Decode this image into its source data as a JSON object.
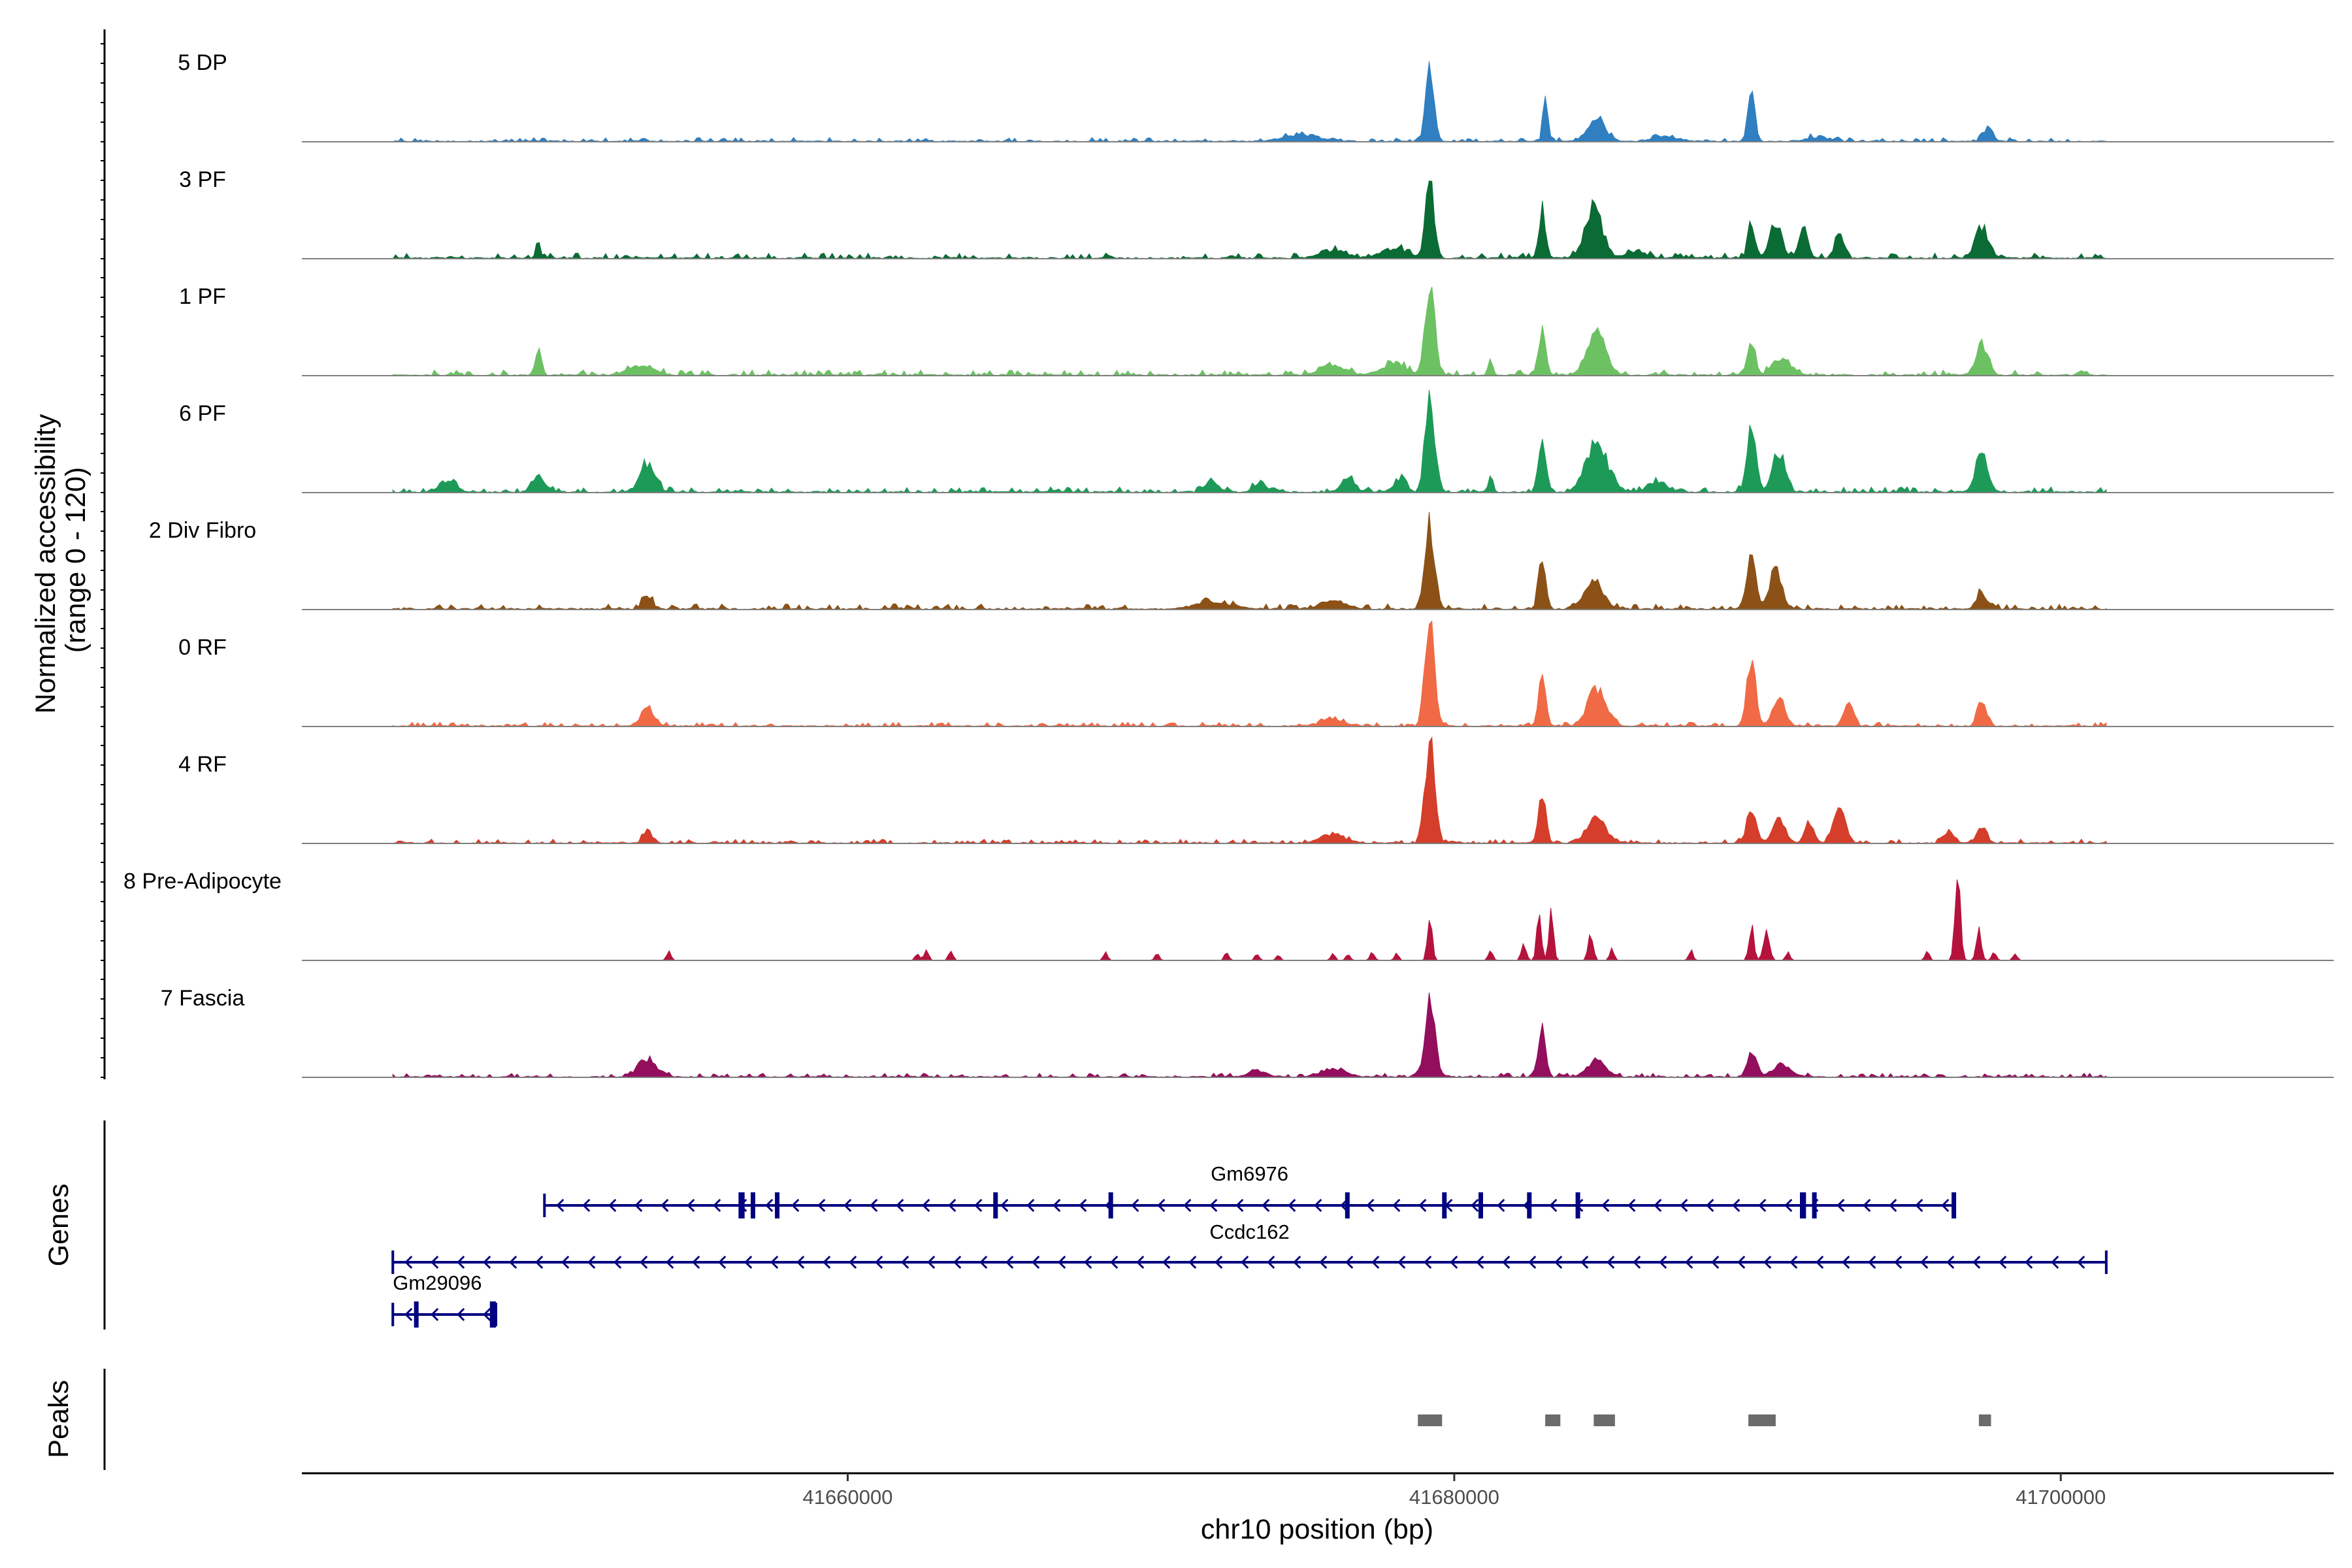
{
  "chart_data": {
    "type": "area",
    "title": "",
    "ylabel_line1": "Normalized accessibility",
    "ylabel_line2": "(range 0 - 120)",
    "ylim": [
      0,
      120
    ],
    "xlabel": "chr10 position (bp)",
    "xlim": [
      41642000,
      41709000
    ],
    "x_ticks": [
      41660000,
      41680000,
      41700000
    ],
    "x_tick_labels": [
      "41660000",
      "41680000",
      "41700000"
    ],
    "track_range": [
      41645000,
      41701500
    ],
    "panel_labels": {
      "genes": "Genes",
      "peaks": "Peaks"
    },
    "tracks": [
      {
        "name": "5 DP",
        "color": "#2f7fc1",
        "baseline": 3,
        "ncells_sparse": false,
        "peaks": [
          [
            41679200,
            90,
            140
          ],
          [
            41683000,
            60,
            70
          ],
          [
            41684700,
            25,
            300
          ],
          [
            41689800,
            65,
            110
          ],
          [
            41697600,
            18,
            150
          ],
          [
            41675000,
            8,
            600
          ],
          [
            41687000,
            6,
            400
          ],
          [
            41692000,
            5,
            400
          ]
        ]
      },
      {
        "name": "3 PF",
        "color": "#0b6b34",
        "baseline": 4,
        "ncells_sparse": false,
        "peaks": [
          [
            41649800,
            20,
            60
          ],
          [
            41679200,
            95,
            140
          ],
          [
            41682900,
            60,
            110
          ],
          [
            41684600,
            55,
            300
          ],
          [
            41689800,
            45,
            110
          ],
          [
            41690600,
            38,
            200
          ],
          [
            41691500,
            35,
            150
          ],
          [
            41692700,
            30,
            150
          ],
          [
            41697400,
            38,
            200
          ],
          [
            41676000,
            10,
            400
          ],
          [
            41678000,
            12,
            400
          ],
          [
            41686000,
            8,
            300
          ]
        ]
      },
      {
        "name": "1 PF",
        "color": "#6cc163",
        "baseline": 4,
        "ncells_sparse": false,
        "peaks": [
          [
            41649800,
            30,
            100
          ],
          [
            41653200,
            12,
            400
          ],
          [
            41679200,
            115,
            150
          ],
          [
            41681200,
            18,
            80
          ],
          [
            41682900,
            60,
            110
          ],
          [
            41684700,
            50,
            300
          ],
          [
            41689800,
            45,
            120
          ],
          [
            41690800,
            20,
            300
          ],
          [
            41697400,
            36,
            200
          ],
          [
            41676000,
            12,
            400
          ],
          [
            41678000,
            14,
            400
          ]
        ]
      },
      {
        "name": "6 PF",
        "color": "#1d9a57",
        "baseline": 4,
        "ncells_sparse": false,
        "peaks": [
          [
            41646800,
            12,
            300
          ],
          [
            41649800,
            20,
            200
          ],
          [
            41653400,
            32,
            250
          ],
          [
            41672000,
            14,
            200
          ],
          [
            41679200,
            115,
            160
          ],
          [
            41681200,
            18,
            80
          ],
          [
            41682900,
            65,
            120
          ],
          [
            41684700,
            60,
            350
          ],
          [
            41689800,
            75,
            150
          ],
          [
            41690700,
            50,
            200
          ],
          [
            41697400,
            50,
            200
          ],
          [
            41673600,
            12,
            200
          ],
          [
            41676500,
            18,
            200
          ],
          [
            41678200,
            16,
            200
          ],
          [
            41686700,
            12,
            300
          ]
        ]
      },
      {
        "name": "2 Div Fibro",
        "color": "#8b5116",
        "baseline": 4,
        "ncells_sparse": false,
        "peaks": [
          [
            41653400,
            16,
            150
          ],
          [
            41679200,
            100,
            160
          ],
          [
            41682900,
            65,
            120
          ],
          [
            41684600,
            35,
            300
          ],
          [
            41689800,
            70,
            150
          ],
          [
            41690600,
            50,
            200
          ],
          [
            41697400,
            20,
            150
          ],
          [
            41676000,
            10,
            400
          ],
          [
            41672000,
            8,
            600
          ]
        ]
      },
      {
        "name": "0 RF",
        "color": "#f06a45",
        "baseline": 3,
        "ncells_sparse": false,
        "peaks": [
          [
            41653400,
            24,
            200
          ],
          [
            41679200,
            125,
            160
          ],
          [
            41682900,
            60,
            120
          ],
          [
            41684700,
            45,
            300
          ],
          [
            41689800,
            75,
            150
          ],
          [
            41690700,
            35,
            200
          ],
          [
            41693000,
            30,
            150
          ],
          [
            41697400,
            30,
            150
          ],
          [
            41676000,
            8,
            400
          ]
        ]
      },
      {
        "name": "4 RF",
        "color": "#d43e2a",
        "baseline": 3,
        "ncells_sparse": false,
        "peaks": [
          [
            41653400,
            14,
            150
          ],
          [
            41679200,
            125,
            160
          ],
          [
            41682900,
            60,
            120
          ],
          [
            41684700,
            30,
            300
          ],
          [
            41689800,
            45,
            150
          ],
          [
            41690700,
            30,
            200
          ],
          [
            41691700,
            25,
            150
          ],
          [
            41692700,
            40,
            200
          ],
          [
            41697400,
            20,
            150
          ],
          [
            41696300,
            15,
            150
          ],
          [
            41676000,
            10,
            400
          ]
        ]
      },
      {
        "name": "8 Pre-Adipocyte",
        "color": "#b5123c",
        "baseline": 0,
        "ncells_sparse": true,
        "peaks": [
          [
            41654100,
            12,
            40
          ],
          [
            41662300,
            8,
            40
          ],
          [
            41662600,
            12,
            40
          ],
          [
            41663400,
            12,
            40
          ],
          [
            41668500,
            10,
            40
          ],
          [
            41670200,
            8,
            40
          ],
          [
            41672500,
            10,
            40
          ],
          [
            41673500,
            8,
            40
          ],
          [
            41674200,
            6,
            60
          ],
          [
            41676000,
            8,
            40
          ],
          [
            41676500,
            8,
            40
          ],
          [
            41677300,
            10,
            40
          ],
          [
            41678100,
            8,
            40
          ],
          [
            41679200,
            60,
            70
          ],
          [
            41681200,
            12,
            40
          ],
          [
            41682300,
            20,
            80
          ],
          [
            41682800,
            58,
            50
          ],
          [
            41683200,
            60,
            40
          ],
          [
            41684500,
            35,
            80
          ],
          [
            41685200,
            15,
            60
          ],
          [
            41687800,
            12,
            60
          ],
          [
            41689800,
            40,
            80
          ],
          [
            41690300,
            35,
            100
          ],
          [
            41691000,
            10,
            60
          ],
          [
            41695600,
            12,
            40
          ],
          [
            41696600,
            100,
            90
          ],
          [
            41697300,
            40,
            80
          ],
          [
            41697800,
            10,
            60
          ],
          [
            41698500,
            8,
            40
          ]
        ]
      },
      {
        "name": "7 Fascia",
        "color": "#930e5d",
        "baseline": 3,
        "ncells_sparse": false,
        "peaks": [
          [
            41653400,
            20,
            300
          ],
          [
            41679200,
            95,
            160
          ],
          [
            41682900,
            55,
            120
          ],
          [
            41684700,
            20,
            300
          ],
          [
            41689800,
            30,
            150
          ],
          [
            41690800,
            15,
            300
          ],
          [
            41676000,
            10,
            400
          ],
          [
            41673500,
            8,
            300
          ]
        ]
      }
    ],
    "genes": [
      {
        "name": "Gm6976",
        "color": "#000080",
        "start": 41650000,
        "end": 41696500,
        "strand": "-",
        "exons": [
          [
            41656400,
            41656600
          ],
          [
            41656800,
            41656900
          ],
          [
            41657600,
            41657650
          ],
          [
            41664800,
            41664950
          ],
          [
            41668600,
            41668650
          ],
          [
            41676400,
            41676550
          ],
          [
            41679600,
            41679750
          ],
          [
            41680800,
            41680950
          ],
          [
            41682400,
            41682550
          ],
          [
            41684000,
            41684100
          ],
          [
            41691400,
            41691600
          ],
          [
            41691800,
            41691900
          ],
          [
            41696400,
            41696500
          ]
        ]
      },
      {
        "name": "Ccdc162",
        "color": "#000080",
        "start": 41645000,
        "end": 41701500,
        "strand": "-",
        "exons": []
      },
      {
        "name": "Gm29096",
        "color": "#000080",
        "start": 41645000,
        "end": 41648400,
        "strand": "-",
        "exons": [
          [
            41645700,
            41645800
          ],
          [
            41648200,
            41648400
          ]
        ]
      }
    ],
    "peak_regions": [
      [
        41678800,
        41679600
      ],
      [
        41683000,
        41683500
      ],
      [
        41684600,
        41685300
      ],
      [
        41689700,
        41690600
      ],
      [
        41697300,
        41697700
      ]
    ],
    "peak_color": "#6b6b6b"
  }
}
